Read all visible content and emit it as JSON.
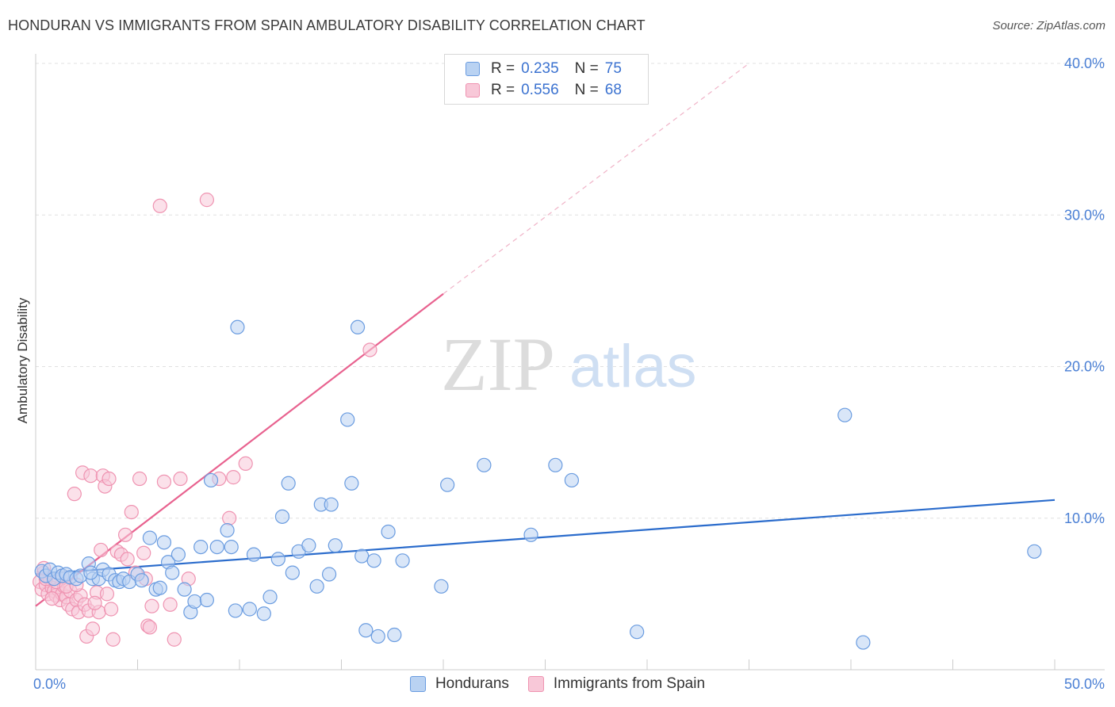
{
  "title": "HONDURAN VS IMMIGRANTS FROM SPAIN AMBULATORY DISABILITY CORRELATION CHART",
  "source": "Source: ZipAtlas.com",
  "watermark": {
    "zip": "ZIP",
    "atlas": "atlas"
  },
  "colors": {
    "blue_fill": "#b9d2f2",
    "blue_stroke": "#6a9ce0",
    "blue_line": "#2b6ccc",
    "pink_fill": "#f8c8d8",
    "pink_stroke": "#ef93b1",
    "pink_line": "#e8628f",
    "grid": "#e0e0e0",
    "tick_text": "#4a7fd4"
  },
  "legend": {
    "rows": [
      {
        "r_label": "R =",
        "r_value": "0.235",
        "n_label": "N =",
        "n_value": "75"
      },
      {
        "r_label": "R =",
        "r_value": "0.556",
        "n_label": "N =",
        "n_value": "68"
      }
    ],
    "bottom": [
      "Hondurans",
      "Immigrants from Spain"
    ]
  },
  "chart_data": {
    "type": "scatter",
    "title": "HONDURAN VS IMMIGRANTS FROM SPAIN AMBULATORY DISABILITY CORRELATION CHART",
    "xlabel": "",
    "ylabel": "Ambulatory Disability",
    "xlim": [
      0,
      50
    ],
    "ylim": [
      0,
      40
    ],
    "x_tick_labels": [
      "0.0%",
      "50.0%"
    ],
    "y_ticks": [
      10,
      20,
      30,
      40
    ],
    "y_tick_labels": [
      "10.0%",
      "20.0%",
      "30.0%",
      "40.0%"
    ],
    "series": [
      {
        "name": "Hondurans",
        "r": 0.235,
        "n": 75,
        "trend": {
          "x": [
            0,
            50
          ],
          "y": [
            6.3,
            11.2
          ],
          "dashed_extension": false
        },
        "points": [
          [
            0.3,
            6.5
          ],
          [
            0.5,
            6.2
          ],
          [
            0.7,
            6.6
          ],
          [
            0.9,
            6.0
          ],
          [
            1.1,
            6.4
          ],
          [
            1.3,
            6.2
          ],
          [
            1.5,
            6.3
          ],
          [
            1.7,
            6.1
          ],
          [
            2.0,
            6.0
          ],
          [
            2.2,
            6.2
          ],
          [
            2.6,
            7.0
          ],
          [
            2.8,
            6.0
          ],
          [
            3.1,
            6.0
          ],
          [
            3.3,
            6.6
          ],
          [
            3.6,
            6.3
          ],
          [
            3.9,
            5.9
          ],
          [
            4.1,
            5.8
          ],
          [
            4.3,
            6.0
          ],
          [
            4.6,
            5.8
          ],
          [
            5.0,
            6.3
          ],
          [
            5.2,
            5.9
          ],
          [
            5.6,
            8.7
          ],
          [
            5.9,
            5.3
          ],
          [
            6.1,
            5.4
          ],
          [
            6.3,
            8.4
          ],
          [
            6.5,
            7.1
          ],
          [
            6.7,
            6.4
          ],
          [
            7.0,
            7.6
          ],
          [
            7.3,
            5.3
          ],
          [
            7.6,
            3.8
          ],
          [
            7.8,
            4.5
          ],
          [
            8.1,
            8.1
          ],
          [
            8.4,
            4.6
          ],
          [
            8.6,
            12.5
          ],
          [
            8.9,
            8.1
          ],
          [
            9.4,
            9.2
          ],
          [
            9.6,
            8.1
          ],
          [
            9.8,
            3.9
          ],
          [
            10.5,
            4.0
          ],
          [
            10.7,
            7.6
          ],
          [
            11.2,
            3.7
          ],
          [
            11.5,
            4.8
          ],
          [
            11.9,
            7.3
          ],
          [
            12.1,
            10.1
          ],
          [
            12.4,
            12.3
          ],
          [
            12.6,
            6.4
          ],
          [
            12.9,
            7.8
          ],
          [
            13.4,
            8.2
          ],
          [
            13.8,
            5.5
          ],
          [
            14.0,
            10.9
          ],
          [
            14.4,
            6.3
          ],
          [
            14.5,
            10.9
          ],
          [
            14.7,
            8.2
          ],
          [
            15.3,
            16.5
          ],
          [
            15.5,
            12.3
          ],
          [
            15.8,
            22.6
          ],
          [
            16.0,
            7.5
          ],
          [
            16.2,
            2.6
          ],
          [
            16.6,
            7.2
          ],
          [
            16.8,
            2.2
          ],
          [
            17.3,
            9.1
          ],
          [
            17.6,
            2.3
          ],
          [
            18.0,
            7.2
          ],
          [
            19.9,
            5.5
          ],
          [
            20.2,
            12.2
          ],
          [
            22.0,
            13.5
          ],
          [
            24.3,
            8.9
          ],
          [
            25.5,
            13.5
          ],
          [
            26.3,
            12.5
          ],
          [
            29.5,
            2.5
          ],
          [
            39.7,
            16.8
          ],
          [
            40.6,
            1.8
          ],
          [
            49.0,
            7.8
          ],
          [
            9.9,
            22.6
          ],
          [
            2.7,
            6.4
          ]
        ]
      },
      {
        "name": "Immigrants from Spain",
        "r": 0.556,
        "n": 68,
        "trend": {
          "x": [
            0,
            20
          ],
          "y": [
            4.2,
            24.8
          ],
          "dashed_extension": true,
          "dashed_to": {
            "x": 35,
            "y": 40.0
          }
        },
        "points": [
          [
            0.2,
            5.8
          ],
          [
            0.3,
            5.3
          ],
          [
            0.4,
            6.4
          ],
          [
            0.5,
            5.6
          ],
          [
            0.6,
            5.0
          ],
          [
            0.7,
            6.0
          ],
          [
            0.8,
            5.4
          ],
          [
            0.9,
            5.2
          ],
          [
            1.0,
            4.9
          ],
          [
            1.1,
            5.3
          ],
          [
            1.2,
            4.6
          ],
          [
            1.3,
            5.0
          ],
          [
            1.4,
            5.5
          ],
          [
            1.5,
            4.8
          ],
          [
            1.6,
            4.3
          ],
          [
            1.7,
            5.2
          ],
          [
            1.8,
            4.0
          ],
          [
            1.9,
            11.6
          ],
          [
            2.0,
            4.6
          ],
          [
            2.1,
            3.8
          ],
          [
            2.2,
            4.9
          ],
          [
            2.3,
            13.0
          ],
          [
            2.4,
            4.3
          ],
          [
            2.5,
            2.2
          ],
          [
            2.6,
            3.9
          ],
          [
            2.7,
            12.8
          ],
          [
            2.8,
            2.7
          ],
          [
            3.0,
            5.1
          ],
          [
            3.1,
            3.8
          ],
          [
            3.2,
            7.9
          ],
          [
            3.3,
            12.8
          ],
          [
            3.4,
            12.1
          ],
          [
            3.5,
            5.0
          ],
          [
            3.6,
            12.6
          ],
          [
            3.7,
            4.0
          ],
          [
            3.8,
            2.0
          ],
          [
            4.0,
            7.8
          ],
          [
            4.2,
            7.6
          ],
          [
            4.4,
            8.9
          ],
          [
            4.5,
            7.3
          ],
          [
            4.7,
            10.4
          ],
          [
            4.9,
            6.4
          ],
          [
            5.1,
            12.6
          ],
          [
            5.3,
            7.7
          ],
          [
            5.4,
            6.0
          ],
          [
            5.5,
            2.9
          ],
          [
            5.6,
            2.8
          ],
          [
            5.7,
            4.2
          ],
          [
            6.1,
            30.6
          ],
          [
            6.3,
            12.4
          ],
          [
            6.6,
            4.3
          ],
          [
            6.8,
            2.0
          ],
          [
            7.1,
            12.6
          ],
          [
            7.5,
            6.0
          ],
          [
            8.4,
            31.0
          ],
          [
            9.0,
            12.6
          ],
          [
            9.5,
            10.0
          ],
          [
            9.7,
            12.7
          ],
          [
            10.3,
            13.6
          ],
          [
            16.4,
            21.1
          ],
          [
            0.5,
            6.0
          ],
          [
            1.0,
            5.8
          ],
          [
            1.5,
            5.5
          ],
          [
            2.0,
            5.6
          ],
          [
            0.8,
            4.7
          ],
          [
            1.3,
            6.2
          ],
          [
            2.9,
            4.4
          ],
          [
            0.4,
            6.7
          ]
        ]
      }
    ]
  }
}
